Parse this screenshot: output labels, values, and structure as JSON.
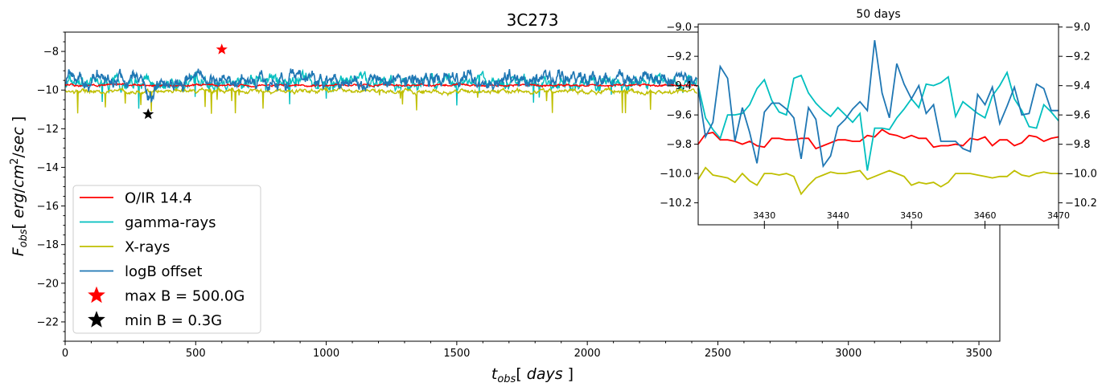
{
  "chart_data": [
    {
      "type": "line",
      "title": "3C273",
      "xlabel": "t_obs[ days ]",
      "ylabel": "F_obs[ erg/cm^2/sec ]",
      "xlim": [
        0,
        3580
      ],
      "ylim": [
        -23,
        -7
      ],
      "xticks": [
        0,
        500,
        1000,
        1500,
        2000,
        2500,
        3000,
        3500
      ],
      "yticks": [
        -22,
        -20,
        -18,
        -16,
        -14,
        -12,
        -10,
        -8
      ],
      "grid": false,
      "legend_position": "lower-left",
      "series": [
        {
          "name": "O/IR 14.4",
          "color": "#ff0000",
          "kind": "line",
          "level": -9.75,
          "noise": 0.05
        },
        {
          "name": "gamma-rays",
          "color": "#00bfbf",
          "kind": "line",
          "level": -9.6,
          "noise": 0.3
        },
        {
          "name": "X-rays",
          "color": "#bfbf00",
          "kind": "line",
          "level": -10.05,
          "noise": 0.1
        },
        {
          "name": "logB offset",
          "color": "#1f77b4",
          "kind": "line",
          "level": -9.45,
          "noise": 0.35
        },
        {
          "name": "max B = 500.0G",
          "color": "#ff0000",
          "kind": "marker",
          "x": 600,
          "y": -7.9
        },
        {
          "name": "min B = 0.3G",
          "color": "#000000",
          "kind": "marker",
          "x": 318,
          "y": -11.25
        }
      ]
    },
    {
      "type": "line",
      "title": "50 days",
      "xlim": [
        3421,
        3470
      ],
      "ylim": [
        -10.35,
        -8.98
      ],
      "xticks": [
        3430,
        3440,
        3450,
        3460,
        3470
      ],
      "yticks": [
        -10.2,
        -10.0,
        -9.8,
        -9.6,
        -9.4,
        -9.2,
        -9.0
      ],
      "x_start": 3421,
      "x_step": 1,
      "series": [
        {
          "name": "O/IR 14.4",
          "color": "#ff0000",
          "values": [
            -9.8,
            -9.73,
            -9.72,
            -9.77,
            -9.77,
            -9.78,
            -9.8,
            -9.78,
            -9.81,
            -9.82,
            -9.76,
            -9.76,
            -9.77,
            -9.77,
            -9.76,
            -9.76,
            -9.83,
            -9.81,
            -9.79,
            -9.77,
            -9.77,
            -9.78,
            -9.78,
            -9.74,
            -9.75,
            -9.7,
            -9.73,
            -9.74,
            -9.76,
            -9.74,
            -9.76,
            -9.76,
            -9.82,
            -9.81,
            -9.81,
            -9.8,
            -9.81,
            -9.76,
            -9.77,
            -9.75,
            -9.81,
            -9.77,
            -9.77,
            -9.81,
            -9.79,
            -9.74,
            -9.75,
            -9.78,
            -9.76,
            -9.75
          ]
        },
        {
          "name": "gamma-rays",
          "color": "#00bfbf",
          "values": [
            -9.4,
            -9.62,
            -9.7,
            -9.76,
            -9.6,
            -9.6,
            -9.59,
            -9.53,
            -9.42,
            -9.36,
            -9.5,
            -9.58,
            -9.6,
            -9.35,
            -9.33,
            -9.45,
            -9.52,
            -9.57,
            -9.61,
            -9.55,
            -9.6,
            -9.65,
            -9.59,
            -9.98,
            -9.69,
            -9.69,
            -9.7,
            -9.62,
            -9.56,
            -9.49,
            -9.55,
            -9.39,
            -9.4,
            -9.38,
            -9.34,
            -9.61,
            -9.51,
            -9.55,
            -9.59,
            -9.62,
            -9.47,
            -9.4,
            -9.31,
            -9.49,
            -9.57,
            -9.68,
            -9.69,
            -9.53,
            -9.58,
            -9.64
          ]
        },
        {
          "name": "X-rays",
          "color": "#bfbf00",
          "values": [
            -10.04,
            -9.96,
            -10.01,
            -10.02,
            -10.03,
            -10.06,
            -10.0,
            -10.05,
            -10.08,
            -10.0,
            -10.0,
            -10.01,
            -10.0,
            -10.02,
            -10.14,
            -10.08,
            -10.03,
            -10.01,
            -9.99,
            -10.0,
            -10.0,
            -9.99,
            -9.98,
            -10.04,
            -10.02,
            -10.0,
            -9.98,
            -10.0,
            -10.02,
            -10.08,
            -10.06,
            -10.07,
            -10.06,
            -10.09,
            -10.06,
            -10.0,
            -10.0,
            -10.0,
            -10.01,
            -10.02,
            -10.03,
            -10.02,
            -10.02,
            -9.98,
            -10.01,
            -10.02,
            -10.0,
            -9.99,
            -10.0,
            -10.0
          ]
        },
        {
          "name": "logB offset",
          "color": "#1f77b4",
          "values": [
            -9.42,
            -9.75,
            -9.65,
            -9.27,
            -9.35,
            -9.78,
            -9.55,
            -9.72,
            -9.93,
            -9.58,
            -9.52,
            -9.52,
            -9.56,
            -9.62,
            -9.9,
            -9.55,
            -9.63,
            -9.95,
            -9.88,
            -9.68,
            -9.63,
            -9.56,
            -9.51,
            -9.57,
            -9.09,
            -9.45,
            -9.62,
            -9.25,
            -9.39,
            -9.49,
            -9.4,
            -9.59,
            -9.53,
            -9.78,
            -9.78,
            -9.78,
            -9.83,
            -9.85,
            -9.46,
            -9.53,
            -9.41,
            -9.66,
            -9.54,
            -9.41,
            -9.6,
            -9.59,
            -9.39,
            -9.42,
            -9.57,
            -9.57
          ]
        }
      ]
    }
  ]
}
